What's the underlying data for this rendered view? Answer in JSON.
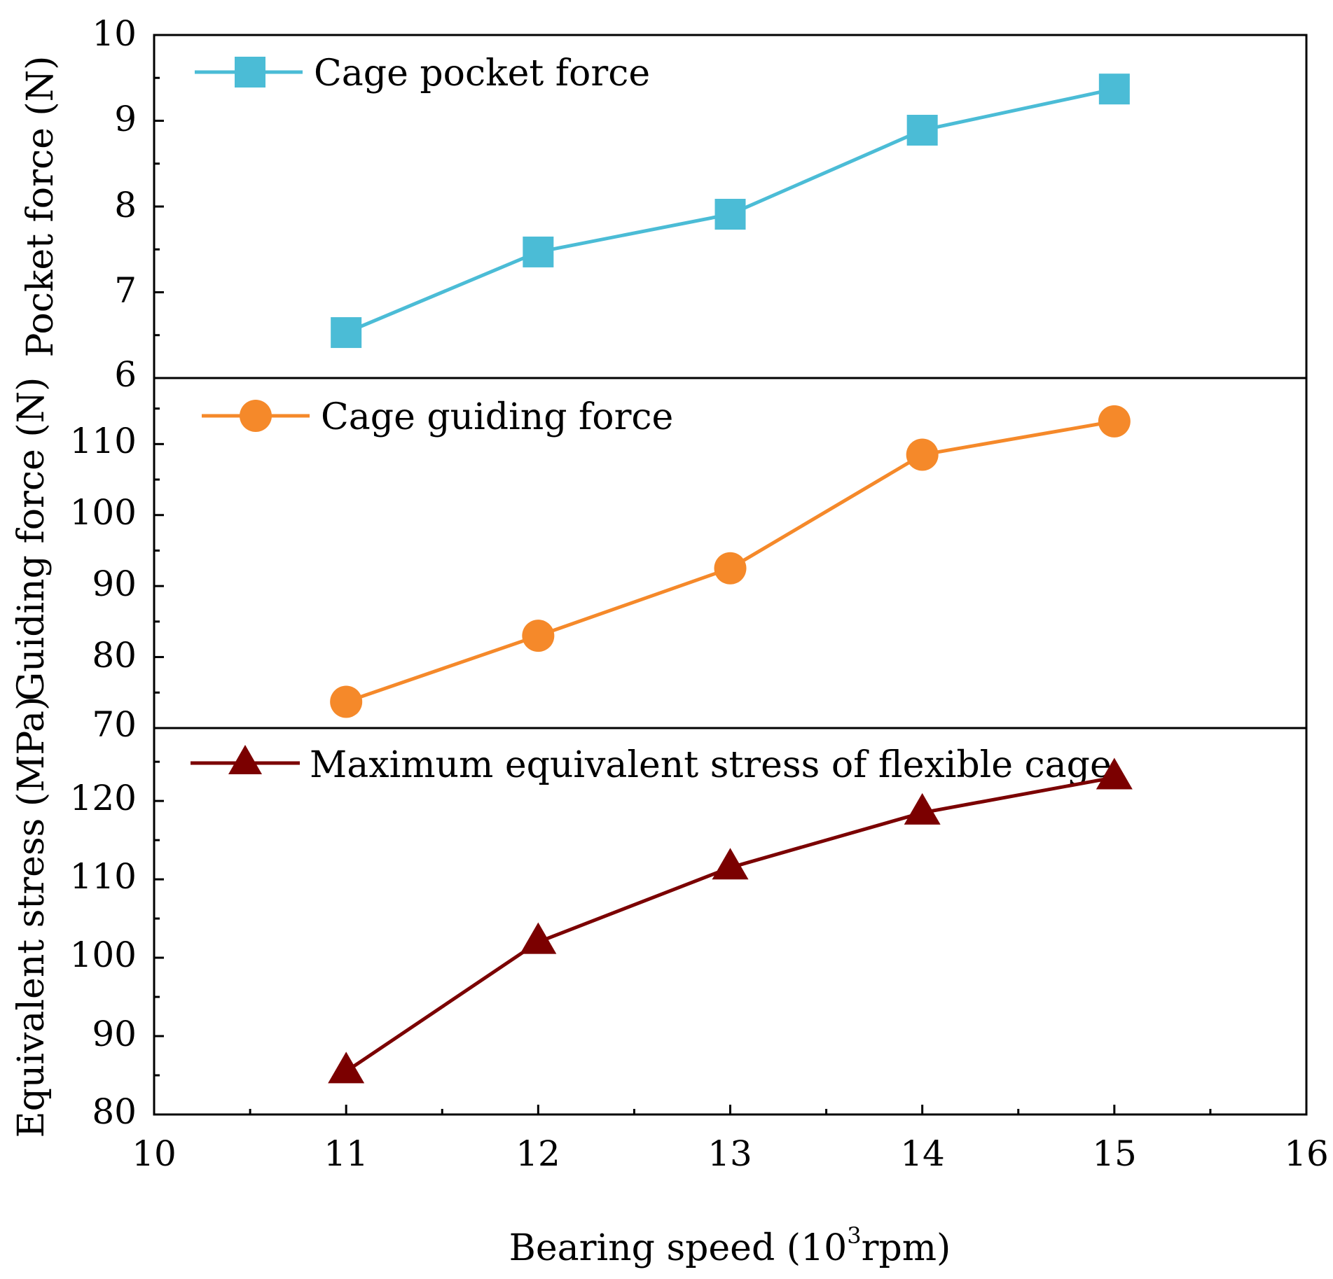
{
  "chart_data": {
    "type": "line",
    "x": [
      11,
      12,
      13,
      14,
      15
    ],
    "xlim": [
      10,
      16
    ],
    "x_ticks": [
      "10",
      "11",
      "12",
      "13",
      "14",
      "15",
      "16"
    ],
    "xlabel_main": "Bearing speed (10",
    "xlabel_sup": "3",
    "xlabel_tail": "rpm)",
    "panels": [
      {
        "name": "Cage pocket force",
        "ylabel": "Pocket force (N)",
        "ylim": [
          6,
          10
        ],
        "y_ticks": [
          "6",
          "7",
          "8",
          "9",
          "10"
        ],
        "values": [
          6.53,
          7.47,
          7.91,
          8.89,
          9.37
        ],
        "color": "#4BBCD6",
        "marker": "square"
      },
      {
        "name": "Cage guiding force",
        "ylabel": "Guiding force (N)",
        "ylim": [
          70,
          119.3
        ],
        "y_ticks": [
          "70",
          "80",
          "90",
          "100",
          "110"
        ],
        "values": [
          73.7,
          83.0,
          92.5,
          108.5,
          113.2
        ],
        "color": "#F5892A",
        "marker": "circle"
      },
      {
        "name": "Maximum equivalent stress of flexible cage",
        "ylabel": "Equivalent stress (MPa)",
        "ylim": [
          80,
          129.3
        ],
        "y_ticks": [
          "80",
          "90",
          "100",
          "110",
          "120"
        ],
        "values": [
          85.5,
          102.0,
          111.5,
          118.5,
          123.0
        ],
        "color": "#7B0000",
        "marker": "triangle"
      }
    ]
  }
}
